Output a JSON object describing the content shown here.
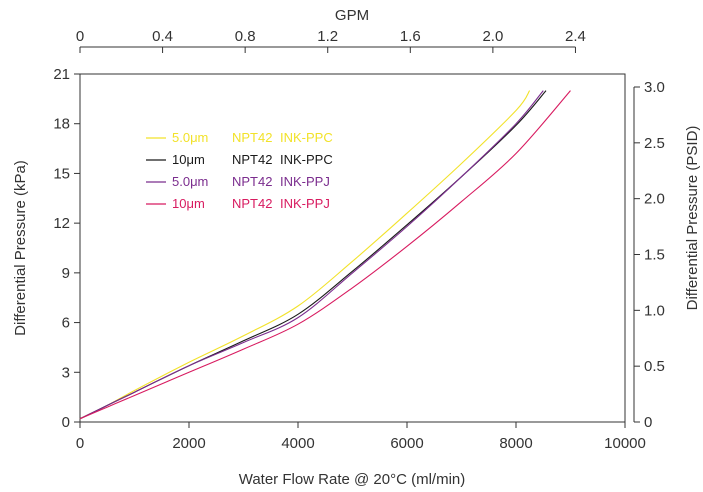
{
  "chart_data": {
    "type": "line",
    "xlabel": "Water Flow Rate @ 20°C (ml/min)",
    "ylabel": "Differential Pressure (kPa)",
    "x2label": "GPM",
    "y2label": "Differential Pressure (PSID)",
    "xlim": [
      0,
      10000
    ],
    "ylim": [
      0,
      21
    ],
    "x2lim": [
      0,
      2.64
    ],
    "y2lim": [
      0,
      3.045
    ],
    "xticks": [
      "0",
      "2000",
      "4000",
      "6000",
      "8000",
      "10000"
    ],
    "yticks": [
      "0",
      "3",
      "6",
      "9",
      "12",
      "15",
      "18",
      "21"
    ],
    "x2ticks": [
      "0",
      "0.4",
      "0.8",
      "1.2",
      "1.6",
      "2.0",
      "2.4"
    ],
    "y2ticks": [
      "0",
      "0.5",
      "1.0",
      "1.5",
      "2.0",
      "2.5",
      "3.0"
    ],
    "grid": false,
    "legend_position": "top-left",
    "series": [
      {
        "name": "5.0μm",
        "type_label": "NPT42",
        "model_label": "INK-PPC",
        "color": "#f2e22a",
        "x": [
          0,
          500,
          1000,
          2000,
          3000,
          4000,
          5000,
          6000,
          7000,
          8000,
          8250
        ],
        "y": [
          0.2,
          1.0,
          1.9,
          3.6,
          5.2,
          7.0,
          9.7,
          12.6,
          15.6,
          18.8,
          20.0
        ]
      },
      {
        "name": "10μm",
        "type_label": "NPT42",
        "model_label": "INK-PPC",
        "color": "#1a1a1a",
        "x": [
          0,
          500,
          1000,
          2000,
          3000,
          4000,
          5000,
          6000,
          7000,
          8000,
          8550
        ],
        "y": [
          0.2,
          1.0,
          1.8,
          3.4,
          4.9,
          6.5,
          9.1,
          11.9,
          14.8,
          17.9,
          20.0
        ]
      },
      {
        "name": "5.0μm",
        "type_label": "NPT42",
        "model_label": "INK-PPJ",
        "color": "#7b2d8e",
        "x": [
          0,
          500,
          1000,
          2000,
          3000,
          4000,
          5000,
          6000,
          7000,
          8000,
          8500
        ],
        "y": [
          0.2,
          1.0,
          1.8,
          3.4,
          4.8,
          6.3,
          9.0,
          11.8,
          14.8,
          18.0,
          20.0
        ]
      },
      {
        "name": "10μm",
        "type_label": "NPT42",
        "model_label": "INK-PPJ",
        "color": "#d81b60",
        "x": [
          0,
          500,
          1000,
          2000,
          3000,
          4000,
          5000,
          6000,
          7000,
          8000,
          9000
        ],
        "y": [
          0.2,
          0.9,
          1.6,
          3.0,
          4.4,
          5.9,
          8.1,
          10.6,
          13.3,
          16.2,
          20.0
        ]
      }
    ]
  }
}
